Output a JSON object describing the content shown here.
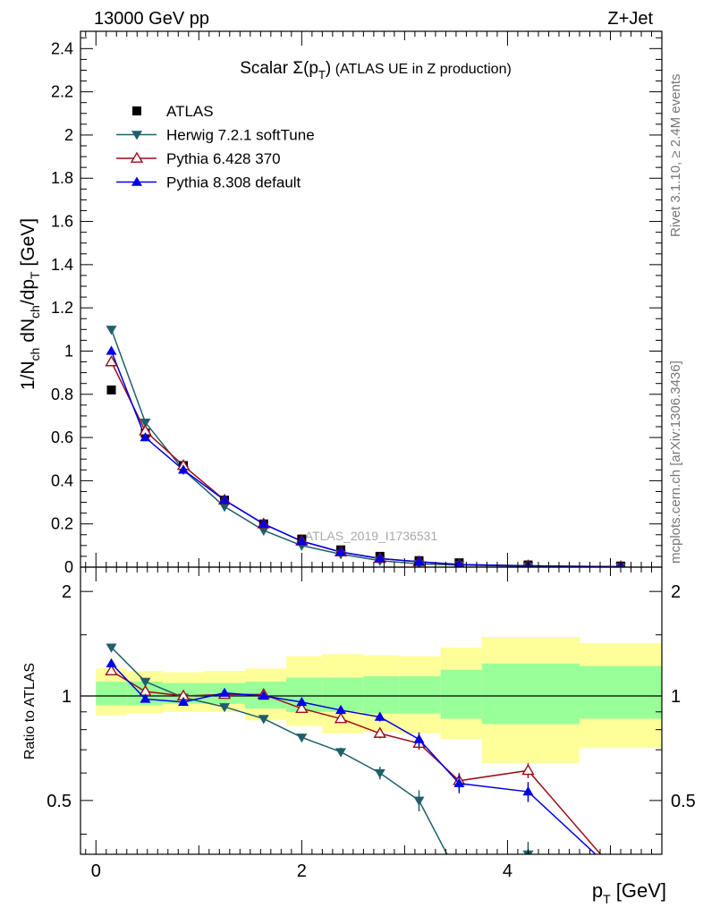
{
  "header": {
    "left": "13000 GeV pp",
    "right": "Z+Jet"
  },
  "side_labels": {
    "top": "Rivet 3.1.10, ≥ 2.4M events",
    "bottom": "mcplots.cern.ch [arXiv:1306.3436]"
  },
  "chart_data": {
    "type": "scatter",
    "title_main": "Scalar Σ(p",
    "title_sub": "T",
    "title_close": ")",
    "title_rest": " (ATLAS UE in Z production)",
    "watermark": "ATLAS_2019_I1736531",
    "xlabel": "p",
    "xlabel_sub": "T",
    "xlabel_unit": " [GeV]",
    "ylabel": "1/N",
    "ylabel_sub1": "ch",
    "ylabel_mid": " dN",
    "ylabel_sub2": "ch",
    "ylabel_end": "/dp",
    "ylabel_sub3": "T",
    "ylabel_unit": " [GeV]",
    "ratio_ylabel": "Ratio to ATLAS",
    "xlim": [
      -0.15,
      5.5
    ],
    "ylim": [
      0,
      2.48
    ],
    "ratio_ylim": [
      0.35,
      2.35
    ],
    "x_ticks": [
      "0",
      "2",
      "4"
    ],
    "y_ticks": [
      "0",
      "0.2",
      "0.4",
      "0.6",
      "0.8",
      "1",
      "1.2",
      "1.4",
      "1.6",
      "1.8",
      "2",
      "2.2",
      "2.4"
    ],
    "ratio_ticks": [
      "0.5",
      "1",
      "2"
    ],
    "bins": [
      [
        0,
        0.3
      ],
      [
        0.3,
        0.65
      ],
      [
        0.65,
        1.05
      ],
      [
        1.05,
        1.45
      ],
      [
        1.45,
        1.85
      ],
      [
        1.85,
        2.2
      ],
      [
        2.2,
        2.6
      ],
      [
        2.6,
        2.95
      ],
      [
        2.95,
        3.35
      ],
      [
        3.35,
        3.75
      ],
      [
        3.75,
        4.7
      ],
      [
        4.7,
        5.5
      ]
    ],
    "x": [
      0.15,
      0.48,
      0.85,
      1.25,
      1.63,
      2.0,
      2.38,
      2.76,
      3.14,
      3.53,
      4.2,
      5.1
    ],
    "band_outer": [
      [
        0.88,
        1.2
      ],
      [
        0.89,
        1.18
      ],
      [
        0.9,
        1.17
      ],
      [
        0.9,
        1.18
      ],
      [
        0.85,
        1.2
      ],
      [
        0.82,
        1.3
      ],
      [
        0.78,
        1.32
      ],
      [
        0.79,
        1.31
      ],
      [
        0.78,
        1.3
      ],
      [
        0.75,
        1.38
      ],
      [
        0.64,
        1.48
      ],
      [
        0.71,
        1.42
      ]
    ],
    "band_inner": [
      [
        0.94,
        1.1
      ],
      [
        0.94,
        1.1
      ],
      [
        0.95,
        1.09
      ],
      [
        0.95,
        1.09
      ],
      [
        0.92,
        1.1
      ],
      [
        0.9,
        1.13
      ],
      [
        0.9,
        1.13
      ],
      [
        0.89,
        1.14
      ],
      [
        0.89,
        1.14
      ],
      [
        0.86,
        1.19
      ],
      [
        0.83,
        1.24
      ],
      [
        0.86,
        1.22
      ]
    ],
    "series": [
      {
        "name": "ATLAS",
        "color": "#000000",
        "marker": "square",
        "values": [
          0.82,
          0.62,
          0.47,
          0.31,
          0.2,
          0.13,
          0.08,
          0.05,
          0.03,
          0.02,
          0.01,
          0.005
        ],
        "ratio": [
          1,
          1,
          1,
          1,
          1,
          1,
          1,
          1,
          1,
          1,
          1,
          1
        ]
      },
      {
        "name": "Herwig 7.2.1 softTune",
        "color": "#1f5f6a",
        "marker": "triangle-down",
        "values": [
          1.1,
          0.67,
          0.45,
          0.28,
          0.17,
          0.1,
          0.06,
          0.03,
          0.015,
          0.01,
          0.004,
          0.001
        ],
        "ratio": [
          1.38,
          1.1,
          0.99,
          0.93,
          0.86,
          0.76,
          0.69,
          0.6,
          0.5,
          0.3,
          0.35,
          0.2
        ]
      },
      {
        "name": "Pythia 6.428 370",
        "color": "#9b0d18",
        "marker": "triangle-open",
        "values": [
          0.95,
          0.63,
          0.47,
          0.31,
          0.2,
          0.12,
          0.07,
          0.04,
          0.025,
          0.012,
          0.006,
          0.002
        ],
        "ratio": [
          1.18,
          1.03,
          1.0,
          1.01,
          1.01,
          0.92,
          0.86,
          0.78,
          0.73,
          0.57,
          0.61,
          0.3
        ]
      },
      {
        "name": "Pythia 8.308 default",
        "color": "#0000e6",
        "marker": "triangle",
        "values": [
          1.0,
          0.6,
          0.45,
          0.31,
          0.2,
          0.12,
          0.07,
          0.04,
          0.025,
          0.012,
          0.006,
          0.002
        ],
        "ratio": [
          1.24,
          0.98,
          0.96,
          1.02,
          1.0,
          0.96,
          0.91,
          0.87,
          0.75,
          0.56,
          0.53,
          0.3
        ]
      }
    ],
    "ratio_errors": {
      "Herwig 7.2.1 softTune": [
        0.02,
        0.02,
        0.015,
        0.015,
        0.015,
        0.015,
        0.02,
        0.025,
        0.035,
        0.0,
        0.03,
        0.0
      ],
      "Pythia 6.428 370": [
        0.02,
        0.02,
        0.015,
        0.015,
        0.015,
        0.02,
        0.02,
        0.025,
        0.03,
        0.03,
        0.03,
        0.0
      ],
      "Pythia 8.308 default": [
        0.02,
        0.02,
        0.015,
        0.015,
        0.015,
        0.015,
        0.02,
        0.025,
        0.035,
        0.035,
        0.035,
        0.0
      ]
    },
    "grid": false,
    "legend_position": "top-left"
  }
}
